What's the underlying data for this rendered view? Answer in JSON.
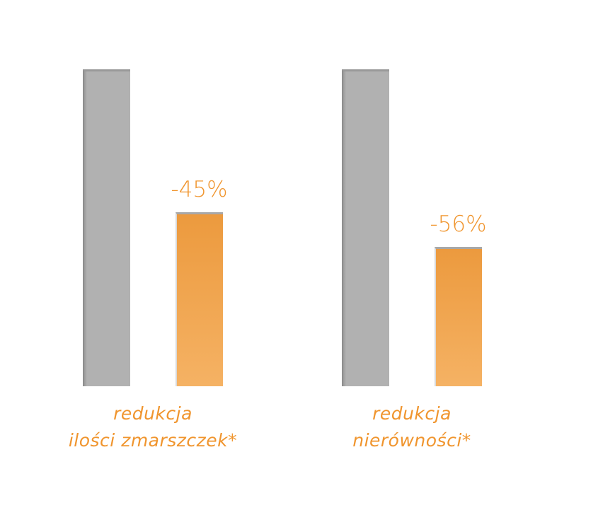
{
  "chart_data": {
    "type": "bar",
    "categories": [
      "redukcja\nilości zmarszczek*",
      "redukcja\nnierówności*"
    ],
    "series": [
      {
        "color": "#b1b1b1",
        "values": [
          100,
          100
        ]
      },
      {
        "color": "#f0a148",
        "values": [
          55,
          44
        ]
      }
    ],
    "annotations": [
      "-45%",
      "-56%"
    ],
    "ylim": [
      0,
      100
    ]
  }
}
